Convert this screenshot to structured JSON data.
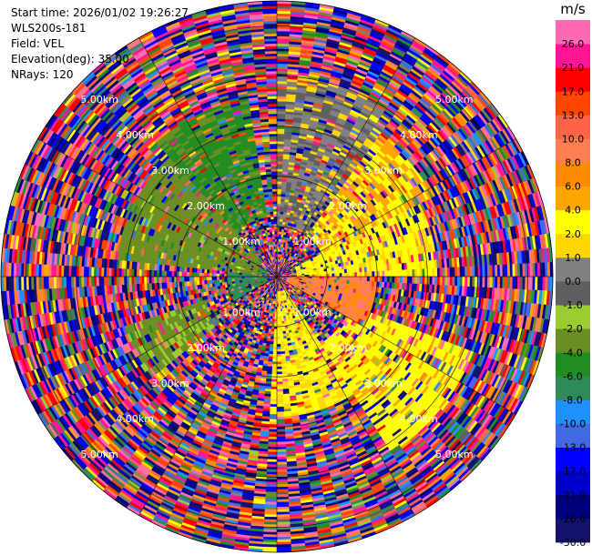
{
  "header": {
    "start_time": "Start time: 2026/01/02 19:26:27",
    "instrument": "WLS200s-181",
    "field": "Field: VEL",
    "elevation": "Elevation(deg): 35.00",
    "nrays": "NRays: 120"
  },
  "chart_data": {
    "type": "heatmap",
    "projection": "polar-ppi",
    "title": "",
    "field": "VEL",
    "units": "m/s",
    "elevation_deg": 35.0,
    "n_rays": 120,
    "range_rings_km": [
      1.0,
      2.0,
      3.0,
      4.0,
      5.0
    ],
    "range_ring_labels": [
      "1.00km",
      "2.00km",
      "3.00km",
      "4.00km",
      "5.00km"
    ],
    "max_range_km": 5.5,
    "colorbar": {
      "label": "m/s",
      "bounds": [
        -30.0,
        -26.0,
        -21.0,
        -17.0,
        -13.0,
        -10.0,
        -8.0,
        -6.0,
        -4.0,
        -2.0,
        -1.0,
        0.0,
        1.0,
        2.0,
        4.0,
        6.0,
        8.0,
        10.0,
        13.0,
        17.0,
        21.0,
        26.0,
        30.0
      ],
      "tick_labels": [
        "-30.0",
        "-26.0",
        "-21.0",
        "-17.0",
        "-13.0",
        "-10.0",
        "-8.0",
        "-6.0",
        "-4.0",
        "-2.0",
        "-1.0",
        "0.0",
        "1.0",
        "2.0",
        "4.0",
        "6.0",
        "8.0",
        "10.0",
        "13.0",
        "17.0",
        "21.0",
        "26.0"
      ],
      "colors": [
        "#13136e",
        "#00007f",
        "#0000cd",
        "#0000ff",
        "#4169e1",
        "#1e90ff",
        "#2e8b57",
        "#228b22",
        "#6b8e23",
        "#9acd32",
        "#5f5f5f",
        "#808080",
        "#ffd700",
        "#ffff00",
        "#ffa500",
        "#ff8c00",
        "#ff7f50",
        "#ff6347",
        "#ff4500",
        "#ff0000",
        "#ff1493",
        "#ff69b4"
      ]
    },
    "sectors": [
      {
        "from_deg": 0,
        "to_deg": 36,
        "inner_km": 1.0,
        "outer_km": 4.0,
        "mean": 0.3
      },
      {
        "from_deg": 30,
        "to_deg": 62,
        "inner_km": 1.0,
        "outer_km": 3.5,
        "mean": 4.0
      },
      {
        "from_deg": 62,
        "to_deg": 90,
        "inner_km": 0.4,
        "outer_km": 3.2,
        "mean": 2.6
      },
      {
        "from_deg": 90,
        "to_deg": 120,
        "inner_km": 0.2,
        "outer_km": 2.0,
        "mean": 8.5
      },
      {
        "from_deg": 110,
        "to_deg": 148,
        "inner_km": 1.6,
        "outer_km": 4.2,
        "mean": 3.2
      },
      {
        "from_deg": 148,
        "to_deg": 182,
        "inner_km": 0.3,
        "outer_km": 2.8,
        "mean": 2.3
      },
      {
        "from_deg": 230,
        "to_deg": 252,
        "inner_km": 1.5,
        "outer_km": 3.2,
        "mean": -2.5
      },
      {
        "from_deg": 275,
        "to_deg": 318,
        "inner_km": 0.4,
        "outer_km": 3.2,
        "mean": -3.0
      },
      {
        "from_deg": 318,
        "to_deg": 352,
        "inner_km": 1.2,
        "outer_km": 3.6,
        "mean": -4.5
      },
      {
        "from_deg": 240,
        "to_deg": 300,
        "inner_km": 0.2,
        "outer_km": 1.0,
        "mean": -6.8
      }
    ]
  }
}
